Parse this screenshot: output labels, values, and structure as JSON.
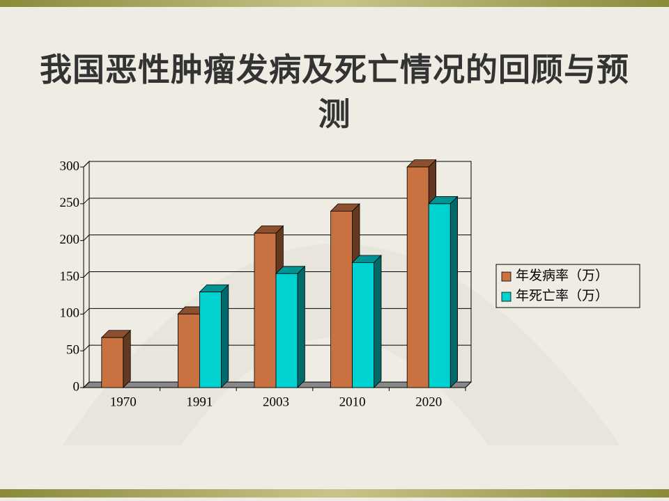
{
  "chart_data": {
    "type": "bar3d",
    "title": "我国恶性肿瘤发病及死亡情况的回顾与预测",
    "categories": [
      "1970",
      "1991",
      "2003",
      "2010",
      "2020"
    ],
    "series": [
      {
        "name": "年发病率（万）",
        "color": "#c87241",
        "values": [
          68,
          100,
          210,
          240,
          300
        ]
      },
      {
        "name": "年死亡率（万）",
        "color": "#00d2d2",
        "values": [
          null,
          130,
          155,
          170,
          250
        ]
      }
    ],
    "ylim": [
      0,
      300
    ],
    "yticks": [
      0,
      50,
      100,
      150,
      200,
      250,
      300
    ],
    "grid": true,
    "legend": "right"
  }
}
